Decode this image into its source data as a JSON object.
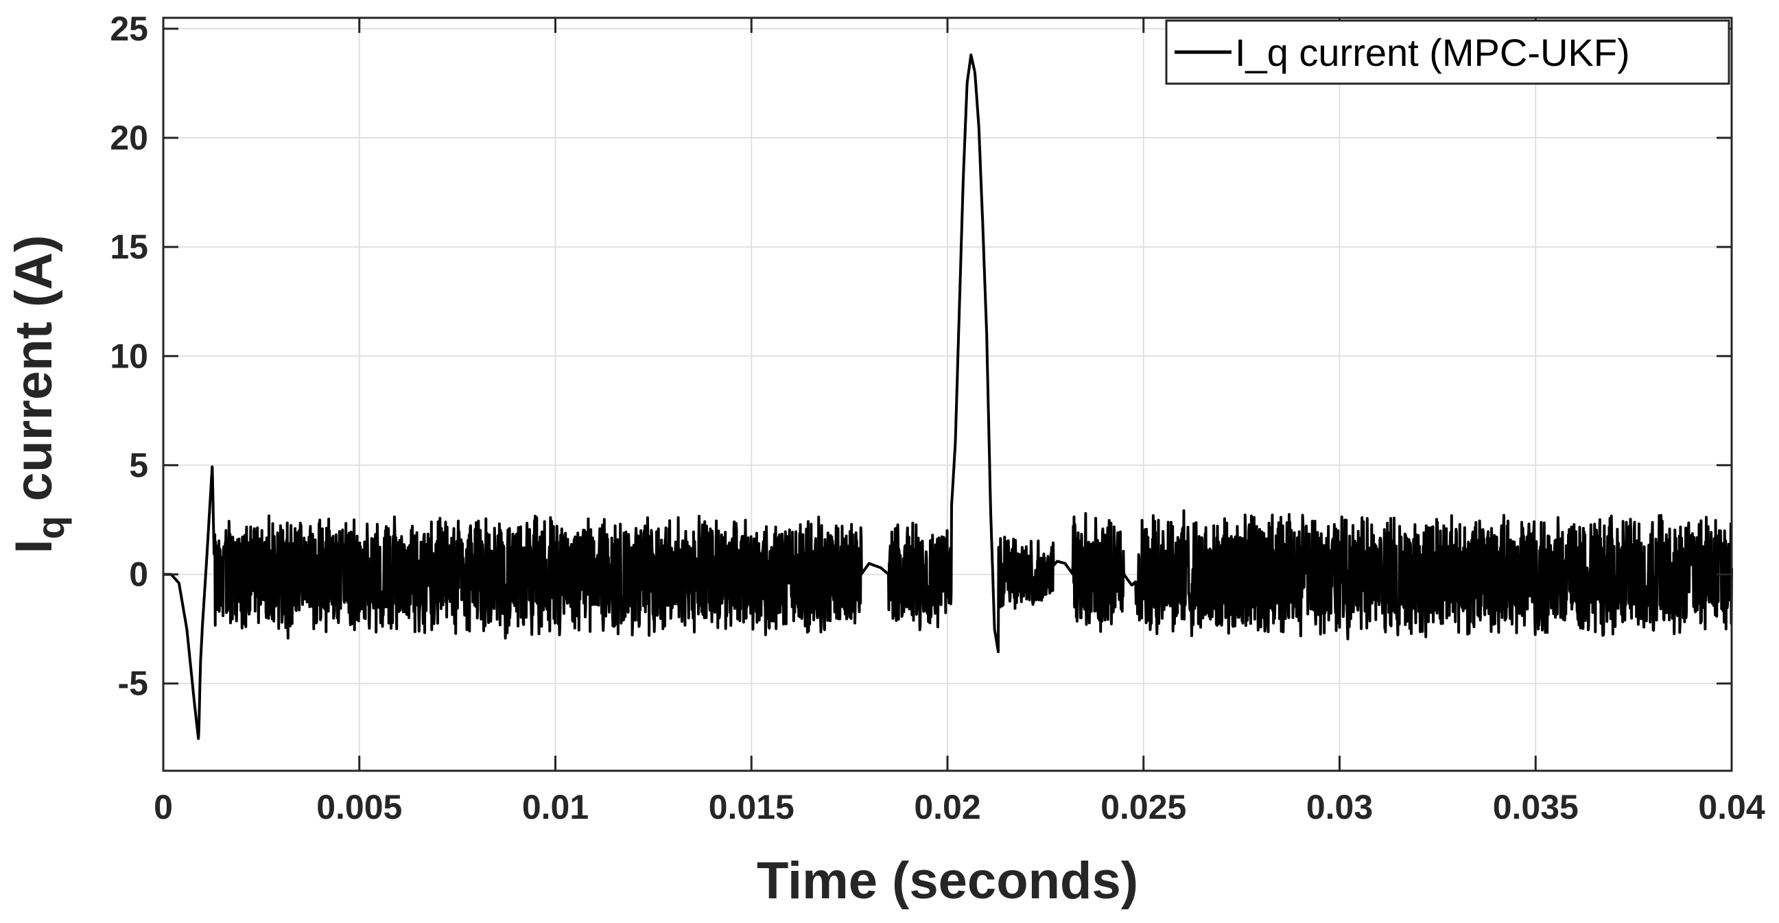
{
  "chart_data": {
    "type": "line",
    "title": "",
    "xlabel": "Time (seconds)",
    "ylabel": "I",
    "ylabel_subscript": "q",
    "ylabel_rest": " current (A)",
    "xlim": [
      0,
      0.04
    ],
    "ylim": [
      -9,
      25.5
    ],
    "grid": true,
    "legend_position": "top-right",
    "x_ticks": [
      0,
      0.005,
      0.01,
      0.015,
      0.02,
      0.025,
      0.03,
      0.035,
      0.04
    ],
    "x_tick_labels": [
      "0",
      "0.005",
      "0.01",
      "0.015",
      "0.02",
      "0.025",
      "0.03",
      "0.035",
      "0.04"
    ],
    "y_ticks": [
      -5,
      0,
      5,
      10,
      15,
      20,
      25
    ],
    "y_tick_labels": [
      "-5",
      "0",
      "5",
      "10",
      "15",
      "20",
      "25"
    ],
    "series": [
      {
        "name": "I_q current (MPC-UKF)",
        "color": "#000000",
        "x": [
          0,
          0.0002,
          0.0004,
          0.0006,
          0.0008,
          0.0009,
          0.00095,
          0.001,
          0.0011,
          0.0012,
          0.00125,
          0.0013,
          0.0015,
          0.002,
          0.003,
          0.004,
          0.005,
          0.006,
          0.007,
          0.0073,
          0.0075,
          0.008,
          0.009,
          0.01,
          0.011,
          0.012,
          0.013,
          0.014,
          0.015,
          0.016,
          0.017,
          0.0178,
          0.018,
          0.0183,
          0.0185,
          0.019,
          0.0195,
          0.0198,
          0.02,
          0.0202,
          0.0203,
          0.0204,
          0.0205,
          0.0206,
          0.0207,
          0.0208,
          0.0209,
          0.021,
          0.0211,
          0.0212,
          0.0213,
          0.0214,
          0.0215,
          0.022,
          0.0225,
          0.0228,
          0.023,
          0.0232,
          0.024,
          0.0245,
          0.0247,
          0.025,
          0.026,
          0.027,
          0.028,
          0.029,
          0.03,
          0.031,
          0.032,
          0.033,
          0.034,
          0.035,
          0.036,
          0.0368,
          0.037,
          0.038,
          0.039,
          0.04
        ],
        "y": [
          0,
          0,
          -0.4,
          -2.5,
          -6.0,
          -7.6,
          -4.0,
          -2.3,
          0.5,
          3.5,
          5.0,
          0.5,
          0,
          0,
          0,
          0,
          0,
          0,
          0,
          0.3,
          0.2,
          0,
          0,
          0,
          0,
          0,
          0,
          0,
          0,
          0,
          0,
          0,
          0.5,
          0.3,
          0,
          0,
          -1.0,
          0,
          0,
          6,
          12,
          18,
          22.5,
          23.8,
          23.0,
          20.5,
          16.0,
          11.0,
          3.0,
          -2.5,
          -3.6,
          -2.5,
          -0.5,
          0,
          0,
          0.6,
          0.5,
          0,
          0,
          0,
          -0.5,
          0,
          0,
          0,
          0,
          0,
          0,
          0,
          0,
          0,
          0,
          0,
          0,
          0.5,
          0.4,
          0,
          0,
          0
        ],
        "noise_segments": [
          {
            "x": [
              0.0013,
              0.0178
            ],
            "amplitude": [
              -3.0,
              2.8
            ]
          },
          {
            "x": [
              0.0185,
              0.0201
            ],
            "amplitude": [
              -2.7,
              2.7
            ]
          },
          {
            "x": [
              0.0213,
              0.0227
            ],
            "amplitude": [
              -1.6,
              1.8
            ]
          },
          {
            "x": [
              0.0232,
              0.0245
            ],
            "amplitude": [
              -2.9,
              2.9
            ]
          },
          {
            "x": [
              0.0248,
              0.04
            ],
            "amplitude": [
              -3.0,
              3.0
            ]
          }
        ]
      }
    ]
  }
}
